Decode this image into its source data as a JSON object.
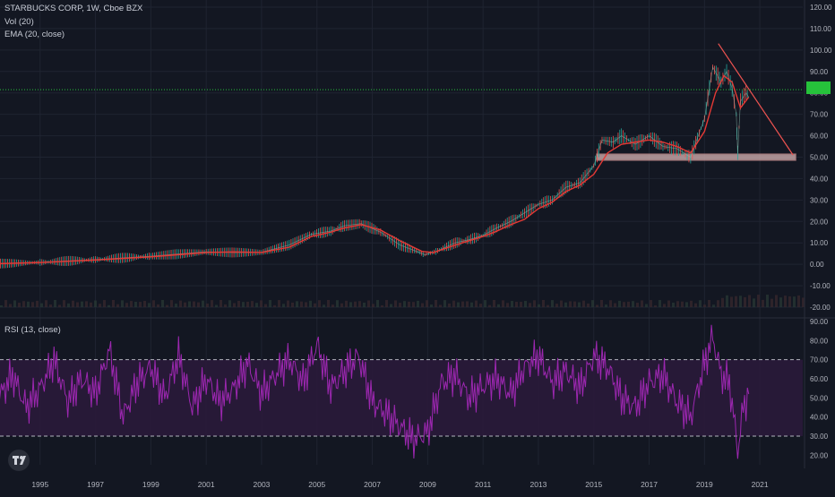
{
  "header": {
    "symbol_line": "STARBUCKS CORP, 1W, Cboe BZX",
    "vol_line": "Vol (20)",
    "ema_line": "EMA (20, close)",
    "rsi_line": "RSI (13, close)"
  },
  "price_tag": "",
  "colors": {
    "background": "#131722",
    "grid": "#1f2431",
    "axis_text": "#b2b5be",
    "candle_up": "#26a69a",
    "candle_down": "#ef5350",
    "ema": "#e53935",
    "trendline": "#ef5350",
    "support_zone": "#d8b4b4",
    "current_price_line": "#26c23b",
    "rsi_line": "#9c27b0",
    "rsi_band": "#2a1a3a",
    "rsi_bounds": "#b2b5be"
  },
  "chart_data": [
    {
      "type": "line",
      "title": "STARBUCKS CORP, 1W, Cboe BZX",
      "series": [
        {
          "name": "EMA (20, close)",
          "x": [
            1993.5,
            1995,
            1997,
            1999,
            2000,
            2001,
            2002,
            2003,
            2004,
            2004.8,
            2005.5,
            2006,
            2006.6,
            2007.3,
            2008,
            2008.8,
            2009.2,
            2010,
            2010.5,
            2011,
            2011.5,
            2012,
            2012.5,
            2013,
            2013.5,
            2014,
            2014.5,
            2015,
            2015.5,
            2016,
            2016.5,
            2017,
            2017.5,
            2018,
            2018.5,
            2019,
            2019.4,
            2019.7,
            2020,
            2020.3,
            2020.6
          ],
          "values": [
            0.3,
            0.8,
            2,
            3.5,
            4.5,
            5.5,
            5.8,
            5.5,
            8,
            13,
            15,
            17,
            18.5,
            16,
            11,
            6,
            5.5,
            9,
            11,
            13,
            15.5,
            18.5,
            21,
            26,
            29,
            34,
            37,
            42,
            52,
            56,
            57,
            58,
            57,
            55,
            52,
            62,
            80,
            88,
            85,
            73,
            78
          ]
        },
        {
          "name": "Price",
          "x": [
            1993.5,
            1995,
            1997,
            1999,
            2000,
            2001,
            2002,
            2003,
            2004,
            2004.8,
            2005.5,
            2006,
            2006.6,
            2007.3,
            2008,
            2008.9,
            2009.3,
            2010,
            2010.5,
            2011,
            2011.5,
            2012,
            2012.5,
            2013,
            2013.5,
            2014,
            2014.5,
            2015,
            2015.3,
            2015.7,
            2016,
            2016.5,
            2017,
            2017.5,
            2018,
            2018.5,
            2019,
            2019.3,
            2019.6,
            2019.8,
            2020,
            2020.15,
            2020.2,
            2020.3,
            2020.5,
            2020.6
          ],
          "values": [
            0.3,
            0.9,
            2.2,
            3.8,
            4.8,
            5.8,
            5.5,
            5.6,
            9,
            14,
            15.5,
            18,
            19,
            15,
            9,
            4.5,
            6,
            10,
            11.5,
            13.5,
            17,
            20,
            24,
            28,
            30,
            36,
            38,
            46,
            58,
            57,
            60,
            56,
            60,
            55,
            54,
            50,
            68,
            92,
            85,
            90,
            82,
            70,
            52,
            76,
            80,
            78
          ]
        }
      ],
      "ylim": [
        -20,
        120
      ],
      "y_ticks": [
        "120.00",
        "110.00",
        "100.00",
        "90.00",
        "80.00",
        "70.00",
        "60.00",
        "50.00",
        "40.00",
        "30.00",
        "20.00",
        "10.00",
        "0.00",
        "-10.00",
        "-20.00"
      ],
      "x_ticks": [
        "1995",
        "1997",
        "1999",
        "2001",
        "2003",
        "2005",
        "2007",
        "2009",
        "2011",
        "2013",
        "2015",
        "2017",
        "2019",
        "2021"
      ],
      "annotations": [
        {
          "kind": "descending trendline",
          "from": [
            2019.5,
            103
          ],
          "to": [
            2022.2,
            51
          ]
        },
        {
          "kind": "support zone",
          "x_range": [
            2015.1,
            2022.3
          ],
          "y_range": [
            48.5,
            51.5
          ]
        },
        {
          "kind": "horizontal price line",
          "y": 81.5
        }
      ],
      "grid": true
    },
    {
      "type": "line",
      "title": "RSI (13, close)",
      "series": [
        {
          "name": "RSI (13, close)",
          "x": [
            1993.5,
            1994,
            1994.5,
            1995,
            1995.5,
            1996,
            1996.5,
            1997,
            1997.5,
            1998,
            1998.5,
            1999,
            1999.5,
            2000,
            2000.5,
            2001,
            2001.5,
            2002,
            2002.5,
            2003,
            2003.5,
            2004,
            2004.5,
            2005,
            2005.5,
            2006,
            2006.5,
            2007,
            2007.5,
            2008,
            2008.5,
            2009,
            2009.5,
            2010,
            2010.5,
            2011,
            2011.5,
            2012,
            2012.5,
            2013,
            2013.5,
            2014,
            2014.5,
            2015,
            2015.5,
            2016,
            2016.5,
            2017,
            2017.5,
            2018,
            2018.5,
            2019,
            2019.3,
            2019.6,
            2019.9,
            2020.1,
            2020.2,
            2020.4,
            2020.6
          ],
          "values": [
            50,
            62,
            45,
            55,
            70,
            48,
            60,
            52,
            75,
            40,
            58,
            66,
            50,
            72,
            45,
            60,
            48,
            55,
            68,
            52,
            62,
            70,
            58,
            78,
            55,
            64,
            72,
            48,
            42,
            35,
            28,
            32,
            58,
            62,
            50,
            56,
            60,
            52,
            66,
            72,
            58,
            64,
            55,
            72,
            66,
            50,
            45,
            58,
            62,
            48,
            40,
            68,
            82,
            62,
            58,
            35,
            22,
            45,
            52
          ]
        }
      ],
      "ylim": [
        15,
        90
      ],
      "y_ticks": [
        "90.00",
        "80.00",
        "70.00",
        "60.00",
        "50.00",
        "40.00",
        "30.00",
        "20.00"
      ],
      "bounds": [
        30,
        70
      ],
      "grid": true
    }
  ]
}
